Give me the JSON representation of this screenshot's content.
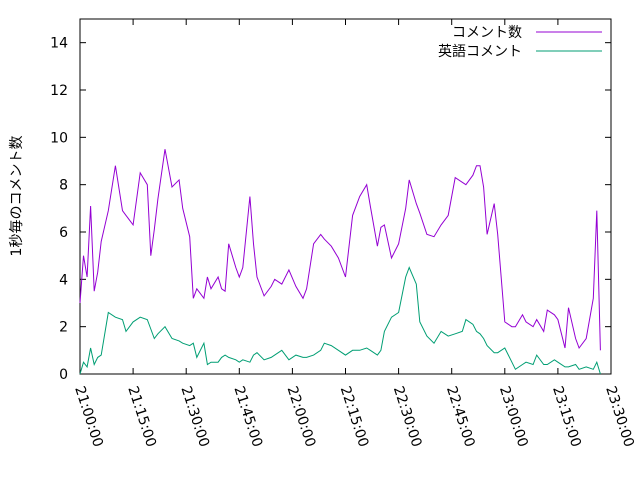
{
  "chart_data": {
    "type": "line",
    "ylabel": "1秒毎のコメント数",
    "xlabel": "",
    "ylim": [
      0,
      15
    ],
    "yticks": [
      0,
      2,
      4,
      6,
      8,
      10,
      12,
      14
    ],
    "xlim": [
      "21:00:00",
      "23:30:00"
    ],
    "xticks": [
      "21:00:00",
      "21:15:00",
      "21:30:00",
      "21:45:00",
      "22:00:00",
      "22:15:00",
      "22:30:00",
      "22:45:00",
      "23:00:00",
      "23:15:00",
      "23:30:00"
    ],
    "legend_position": "top-right",
    "grid": false,
    "x": [
      "21:00:00",
      "21:01:00",
      "21:02:00",
      "21:03:00",
      "21:04:00",
      "21:05:00",
      "21:06:00",
      "21:08:00",
      "21:10:00",
      "21:12:00",
      "21:13:00",
      "21:15:00",
      "21:17:00",
      "21:19:00",
      "21:20:00",
      "21:21:00",
      "21:22:00",
      "21:24:00",
      "21:26:00",
      "21:28:00",
      "21:29:00",
      "21:31:00",
      "21:32:00",
      "21:33:00",
      "21:35:00",
      "21:36:00",
      "21:37:00",
      "21:39:00",
      "21:40:00",
      "21:41:00",
      "21:42:00",
      "21:44:00",
      "21:45:00",
      "21:46:00",
      "21:48:00",
      "21:49:00",
      "21:50:00",
      "21:52:00",
      "21:54:00",
      "21:55:00",
      "21:57:00",
      "21:59:00",
      "22:01:00",
      "22:03:00",
      "22:04:00",
      "22:06:00",
      "22:08:00",
      "22:09:00",
      "22:11:00",
      "22:13:00",
      "22:15:00",
      "22:17:00",
      "22:19:00",
      "22:21:00",
      "22:22:00",
      "22:24:00",
      "22:25:00",
      "22:26:00",
      "22:28:00",
      "22:30:00",
      "22:32:00",
      "22:33:00",
      "22:35:00",
      "22:36:00",
      "22:38:00",
      "22:40:00",
      "22:42:00",
      "22:44:00",
      "22:46:00",
      "22:48:00",
      "22:49:00",
      "22:51:00",
      "22:52:00",
      "22:53:00",
      "22:54:00",
      "22:55:00",
      "22:57:00",
      "22:58:00",
      "23:00:00",
      "23:02:00",
      "23:03:00",
      "23:05:00",
      "23:06:00",
      "23:08:00",
      "23:09:00",
      "23:11:00",
      "23:12:00",
      "23:14:00",
      "23:15:00",
      "23:17:00",
      "23:18:00",
      "23:20:00",
      "23:21:00",
      "23:23:00",
      "23:25:00",
      "23:26:00",
      "23:27:00"
    ],
    "series": [
      {
        "name": "コメント数",
        "color": "#9400d3",
        "values": [
          3.0,
          5.0,
          4.1,
          7.1,
          3.5,
          4.3,
          5.6,
          6.9,
          8.8,
          6.9,
          6.7,
          6.3,
          8.5,
          8.0,
          5.0,
          6.1,
          7.4,
          9.5,
          7.9,
          8.2,
          7.0,
          5.8,
          3.2,
          3.6,
          3.2,
          4.1,
          3.6,
          4.1,
          3.6,
          3.5,
          5.5,
          4.5,
          4.1,
          4.5,
          7.5,
          5.5,
          4.1,
          3.3,
          3.7,
          4.0,
          3.8,
          4.4,
          3.7,
          3.2,
          3.6,
          5.5,
          5.9,
          5.7,
          5.4,
          4.9,
          4.1,
          6.7,
          7.5,
          8.0,
          7.1,
          5.4,
          6.2,
          6.3,
          4.9,
          5.5,
          7.0,
          8.2,
          7.2,
          6.8,
          5.9,
          5.8,
          6.3,
          6.7,
          8.3,
          8.1,
          8.0,
          8.4,
          8.8,
          8.8,
          7.9,
          5.9,
          7.2,
          5.9,
          2.2,
          2.0,
          2.0,
          2.5,
          2.2,
          2.0,
          2.3,
          1.8,
          2.7,
          2.5,
          2.3,
          1.1,
          2.8,
          1.5,
          1.1,
          1.5,
          3.2,
          6.9,
          1.0
        ]
      },
      {
        "name": "英語コメント",
        "color": "#009e73",
        "values": [
          0.0,
          0.5,
          0.3,
          1.1,
          0.4,
          0.7,
          0.8,
          2.6,
          2.4,
          2.3,
          1.8,
          2.2,
          2.4,
          2.3,
          1.9,
          1.5,
          1.7,
          2.0,
          1.5,
          1.4,
          1.3,
          1.2,
          1.3,
          0.7,
          1.3,
          0.4,
          0.5,
          0.5,
          0.7,
          0.8,
          0.7,
          0.6,
          0.5,
          0.6,
          0.5,
          0.8,
          0.9,
          0.6,
          0.7,
          0.8,
          1.0,
          0.6,
          0.8,
          0.7,
          0.7,
          0.8,
          1.0,
          1.3,
          1.2,
          1.0,
          0.8,
          1.0,
          1.0,
          1.1,
          1.0,
          0.8,
          1.0,
          1.8,
          2.4,
          2.6,
          4.1,
          4.5,
          3.8,
          2.2,
          1.6,
          1.3,
          1.8,
          1.6,
          1.7,
          1.8,
          2.3,
          2.1,
          1.8,
          1.7,
          1.5,
          1.2,
          0.9,
          0.9,
          1.1,
          0.5,
          0.2,
          0.4,
          0.5,
          0.4,
          0.8,
          0.4,
          0.4,
          0.6,
          0.5,
          0.3,
          0.3,
          0.4,
          0.2,
          0.3,
          0.2,
          0.5,
          0.0
        ]
      }
    ]
  }
}
